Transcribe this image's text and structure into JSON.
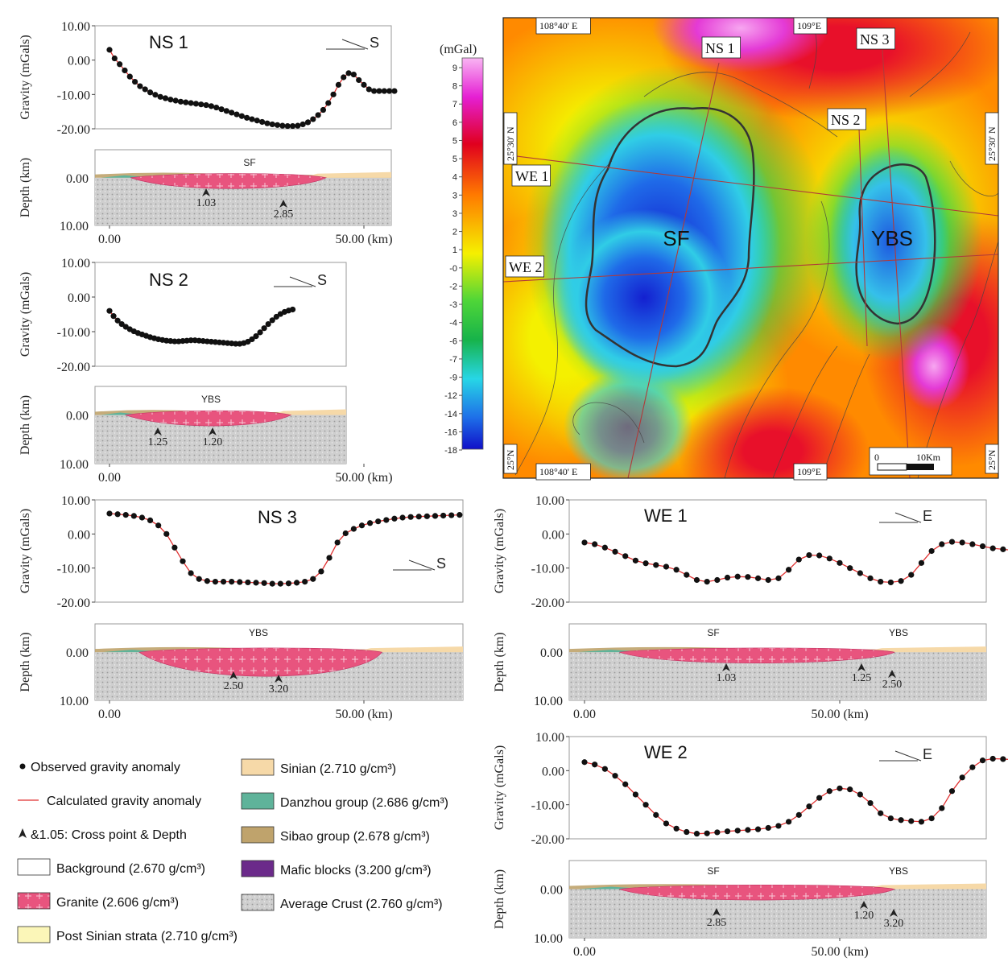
{
  "units": {
    "gravity_axis": "Gravity (mGals)",
    "depth_axis": "Depth (km)",
    "dist_end": "50.00 (km)",
    "dist_start": "0.00"
  },
  "colors": {
    "observed": "#111111",
    "calculated": "#e03030",
    "granite": "#e8547e",
    "sinian": "#f6d9a8",
    "danzhou": "#5fb39a",
    "sibao": "#bfa36c",
    "mafic": "#6b2a8a",
    "crust": "#c8c8c8",
    "post_sinian": "#fbf6b8",
    "background": "#ffffff",
    "outline": "#333333"
  },
  "chart_data": [
    {
      "type": "line",
      "name": "NS 1",
      "direction": "S",
      "yticks": [
        "10.00",
        "0.00",
        "-10.00",
        "-20.00"
      ],
      "ylim": [
        -20,
        10
      ],
      "xlim": [
        0,
        60
      ],
      "series": [
        {
          "name": "Observed gravity anomaly",
          "x": [
            0,
            1,
            2,
            3,
            4,
            5,
            6,
            7,
            8,
            9,
            10,
            11,
            12,
            13,
            14,
            15,
            16,
            17,
            18,
            19,
            20,
            21,
            22,
            23,
            24,
            25,
            26,
            27,
            28,
            29,
            30,
            31,
            32,
            33,
            34,
            35,
            36,
            37,
            38,
            39,
            40,
            41,
            42,
            43,
            44,
            45,
            46,
            47,
            48,
            49,
            50,
            51,
            52,
            53,
            54,
            55,
            56
          ],
          "y": [
            3,
            0.5,
            -1.2,
            -3,
            -4.8,
            -6.3,
            -7.6,
            -8.5,
            -9.4,
            -10.1,
            -10.7,
            -11.1,
            -11.5,
            -11.8,
            -12.1,
            -12.3,
            -12.5,
            -12.7,
            -12.9,
            -13.1,
            -13.4,
            -13.8,
            -14.3,
            -14.8,
            -15.3,
            -15.8,
            -16.3,
            -16.8,
            -17.2,
            -17.6,
            -18,
            -18.4,
            -18.7,
            -18.9,
            -19.1,
            -19.2,
            -19.2,
            -19.1,
            -18.7,
            -18.1,
            -17.2,
            -16,
            -14.5,
            -12.5,
            -10,
            -7.2,
            -5,
            -3.8,
            -4.2,
            -5.8,
            -7.2,
            -8.5,
            -9,
            -9,
            -9,
            -9,
            -9
          ]
        }
      ],
      "depth_labels": [
        "SF"
      ],
      "cross_points": [
        {
          "x": 15,
          "depth": "1.03"
        },
        {
          "x": 28,
          "depth": "2.85"
        }
      ]
    },
    {
      "type": "line",
      "name": "NS 2",
      "direction": "S",
      "yticks": [
        "10.00",
        "0.00",
        "-10.00",
        "-20.00"
      ],
      "ylim": [
        -20,
        10
      ],
      "xlim": [
        0,
        60
      ],
      "series": [
        {
          "name": "Observed gravity anomaly",
          "x": [
            0,
            0.8,
            1.6,
            2.4,
            3.2,
            4,
            4.8,
            5.6,
            6.4,
            7.2,
            8,
            8.8,
            9.6,
            10.4,
            11.2,
            12,
            12.8,
            13.6,
            14.4,
            15.2,
            16,
            16.8,
            17.6,
            18.4,
            19.2,
            20,
            20.8,
            21.6,
            22.4,
            23.2,
            24,
            24.8,
            25.6,
            26.4,
            27.2,
            28,
            28.8,
            29.6,
            30.4,
            31.2,
            32,
            32.8,
            33.6,
            34.4,
            35.2,
            36
          ],
          "y": [
            -4,
            -5.5,
            -6.8,
            -7.8,
            -8.6,
            -9.3,
            -9.9,
            -10.4,
            -10.8,
            -11.2,
            -11.6,
            -11.9,
            -12.2,
            -12.4,
            -12.6,
            -12.7,
            -12.8,
            -12.8,
            -12.7,
            -12.6,
            -12.5,
            -12.5,
            -12.6,
            -12.7,
            -12.8,
            -12.9,
            -13,
            -13.1,
            -13.2,
            -13.3,
            -13.4,
            -13.5,
            -13.5,
            -13.3,
            -12.9,
            -12.2,
            -11.3,
            -10.2,
            -9,
            -7.8,
            -6.7,
            -5.7,
            -4.9,
            -4.3,
            -3.9,
            -3.6
          ]
        }
      ],
      "depth_labels": [
        "YBS"
      ],
      "cross_points": [
        {
          "x": 8,
          "depth": "1.25"
        },
        {
          "x": 17,
          "depth": "1.20"
        }
      ]
    },
    {
      "type": "line",
      "name": "NS 3",
      "direction": "S",
      "yticks": [
        "10.00",
        "0.00",
        "-10.00",
        "-20.00"
      ],
      "ylim": [
        -20,
        10
      ],
      "xlim": [
        0,
        70
      ],
      "series": [
        {
          "name": "Observed gravity anomaly",
          "x": [
            0,
            1.6,
            3.2,
            4.8,
            6.4,
            8,
            9.6,
            11.2,
            12.8,
            14.4,
            16,
            17.6,
            19.2,
            20.8,
            22.4,
            24,
            25.6,
            27.2,
            28.8,
            30.4,
            32,
            33.6,
            35.2,
            36.8,
            38.4,
            40,
            41.6,
            43.2,
            44.8,
            46.4,
            48,
            49.6,
            51.2,
            52.8,
            54.4,
            56,
            57.6,
            59.2,
            60.8,
            62.4,
            64,
            65.6,
            67.2,
            68.8
          ],
          "y": [
            6,
            5.8,
            5.6,
            5.3,
            4.8,
            4,
            2.5,
            0,
            -4,
            -8,
            -11.5,
            -13.2,
            -13.8,
            -14,
            -14,
            -14,
            -14.1,
            -14.2,
            -14.3,
            -14.4,
            -14.6,
            -14.6,
            -14.5,
            -14.3,
            -14,
            -13.2,
            -11,
            -7,
            -2.5,
            0.2,
            1.5,
            2.5,
            3.2,
            3.7,
            4.1,
            4.5,
            4.8,
            5,
            5.1,
            5.2,
            5.3,
            5.4,
            5.5,
            5.6
          ]
        }
      ],
      "depth_labels": [
        "YBS"
      ],
      "cross_points": [
        {
          "x": 24,
          "depth": "2.50"
        },
        {
          "x": 33,
          "depth": "3.20"
        }
      ]
    },
    {
      "type": "line",
      "name": "WE 1",
      "direction": "E",
      "yticks": [
        "10.00",
        "0.00",
        "-10.00",
        "-20.00"
      ],
      "ylim": [
        -20,
        10
      ],
      "xlim": [
        0,
        85
      ],
      "series": [
        {
          "name": "Observed gravity anomaly",
          "x": [
            0,
            2,
            4,
            6,
            8,
            10,
            12,
            14,
            16,
            18,
            20,
            22,
            24,
            26,
            28,
            30,
            32,
            34,
            36,
            38,
            40,
            42,
            44,
            46,
            48,
            50,
            52,
            54,
            56,
            58,
            60,
            62,
            64,
            66,
            68,
            70,
            72,
            74,
            76,
            78,
            80,
            82,
            84
          ],
          "y": [
            -2.5,
            -3,
            -4,
            -5.2,
            -6.5,
            -7.8,
            -8.6,
            -9.1,
            -9.6,
            -10.5,
            -12,
            -13.5,
            -14,
            -13.5,
            -12.8,
            -12.5,
            -12.6,
            -13,
            -13.5,
            -13,
            -10.5,
            -7.5,
            -6.2,
            -6.3,
            -7.2,
            -8.5,
            -10,
            -11.5,
            -13,
            -14,
            -14.2,
            -13.8,
            -12,
            -8.5,
            -5,
            -3,
            -2.3,
            -2.5,
            -3,
            -3.6,
            -4.2,
            -4.5,
            -4.8
          ]
        }
      ],
      "depth_labels": [
        "SF",
        "YBS"
      ],
      "cross_points": [
        {
          "x": 30,
          "depth": "1.03"
        },
        {
          "x": 59,
          "depth": "1.25"
        },
        {
          "x": 64,
          "depth": "2.50"
        }
      ]
    },
    {
      "type": "line",
      "name": "WE 2",
      "direction": "E",
      "yticks": [
        "10.00",
        "0.00",
        "-10.00",
        "-20.00"
      ],
      "ylim": [
        -20,
        10
      ],
      "xlim": [
        0,
        85
      ],
      "series": [
        {
          "name": "Observed gravity anomaly",
          "x": [
            0,
            2,
            4,
            6,
            8,
            10,
            12,
            14,
            16,
            18,
            20,
            22,
            24,
            26,
            28,
            30,
            32,
            34,
            36,
            38,
            40,
            42,
            44,
            46,
            48,
            50,
            52,
            54,
            56,
            58,
            60,
            62,
            64,
            66,
            68,
            70,
            72,
            74,
            76,
            78,
            80,
            82,
            84
          ],
          "y": [
            2.5,
            1.8,
            0.5,
            -1.5,
            -4,
            -7,
            -10,
            -13,
            -15.5,
            -17,
            -18,
            -18.5,
            -18.4,
            -18.1,
            -17.8,
            -17.6,
            -17.4,
            -17.2,
            -16.8,
            -16.2,
            -15,
            -13,
            -10.5,
            -8,
            -6,
            -5.2,
            -5.5,
            -7,
            -9.5,
            -12.5,
            -14,
            -14.5,
            -14.8,
            -15,
            -14,
            -11,
            -6,
            -2,
            1,
            3,
            3.5,
            3.4,
            3.2
          ]
        }
      ],
      "depth_labels": [
        "SF",
        "YBS"
      ],
      "cross_points": [
        {
          "x": 28,
          "depth": "2.85"
        },
        {
          "x": 59,
          "depth": "1.20"
        },
        {
          "x": 65,
          "depth": "3.20"
        }
      ]
    },
    {
      "type": "heatmap",
      "name": "Bouguer gravity map",
      "unit": "(mGal)",
      "colorbar_labels": [
        "9",
        "8",
        "7",
        "6",
        "5",
        "5",
        "4",
        "3",
        "3",
        "2",
        "1",
        "-0",
        "-2",
        "-3",
        "-4",
        "-6",
        "-7",
        "-9",
        "-12",
        "-14",
        "-16",
        "-18"
      ],
      "coord_labels": {
        "lon_top_left": "108°40' E",
        "lon_top_right": "109°E",
        "lon_bottom_left": "108°40' E",
        "lon_bottom_right": "109°E",
        "lat_left_upper": "25°30' N",
        "lat_right_upper": "25°30' N",
        "lat_left_lower": "25°N",
        "lat_right_lower": "25°N"
      },
      "profile_labels": [
        "NS 1",
        "NS 2",
        "NS 3",
        "WE 1",
        "WE 2"
      ],
      "body_labels": [
        "SF",
        "YBS"
      ],
      "scale_bar": {
        "start": "0",
        "end": "10Km"
      }
    }
  ],
  "legend": {
    "left": [
      {
        "key": "observed",
        "label": "Observed gravity anomaly"
      },
      {
        "key": "calculated",
        "label": "Calculated gravity anomaly"
      },
      {
        "key": "cross",
        "label": "&1.05: Cross point & Depth"
      },
      {
        "key": "background",
        "label": "Background (2.670 g/cm³)"
      },
      {
        "key": "granite",
        "label": "Granite (2.606 g/cm³)"
      },
      {
        "key": "post_sinian",
        "label": "Post Sinian strata (2.710 g/cm³)"
      }
    ],
    "right": [
      {
        "key": "sinian",
        "label": "Sinian (2.710 g/cm³)"
      },
      {
        "key": "danzhou",
        "label": "Danzhou group (2.686 g/cm³)"
      },
      {
        "key": "sibao",
        "label": "Sibao group (2.678 g/cm³)"
      },
      {
        "key": "mafic",
        "label": "Mafic blocks (3.200 g/cm³)"
      },
      {
        "key": "crust",
        "label": "Average Crust (2.760 g/cm³)"
      }
    ]
  }
}
